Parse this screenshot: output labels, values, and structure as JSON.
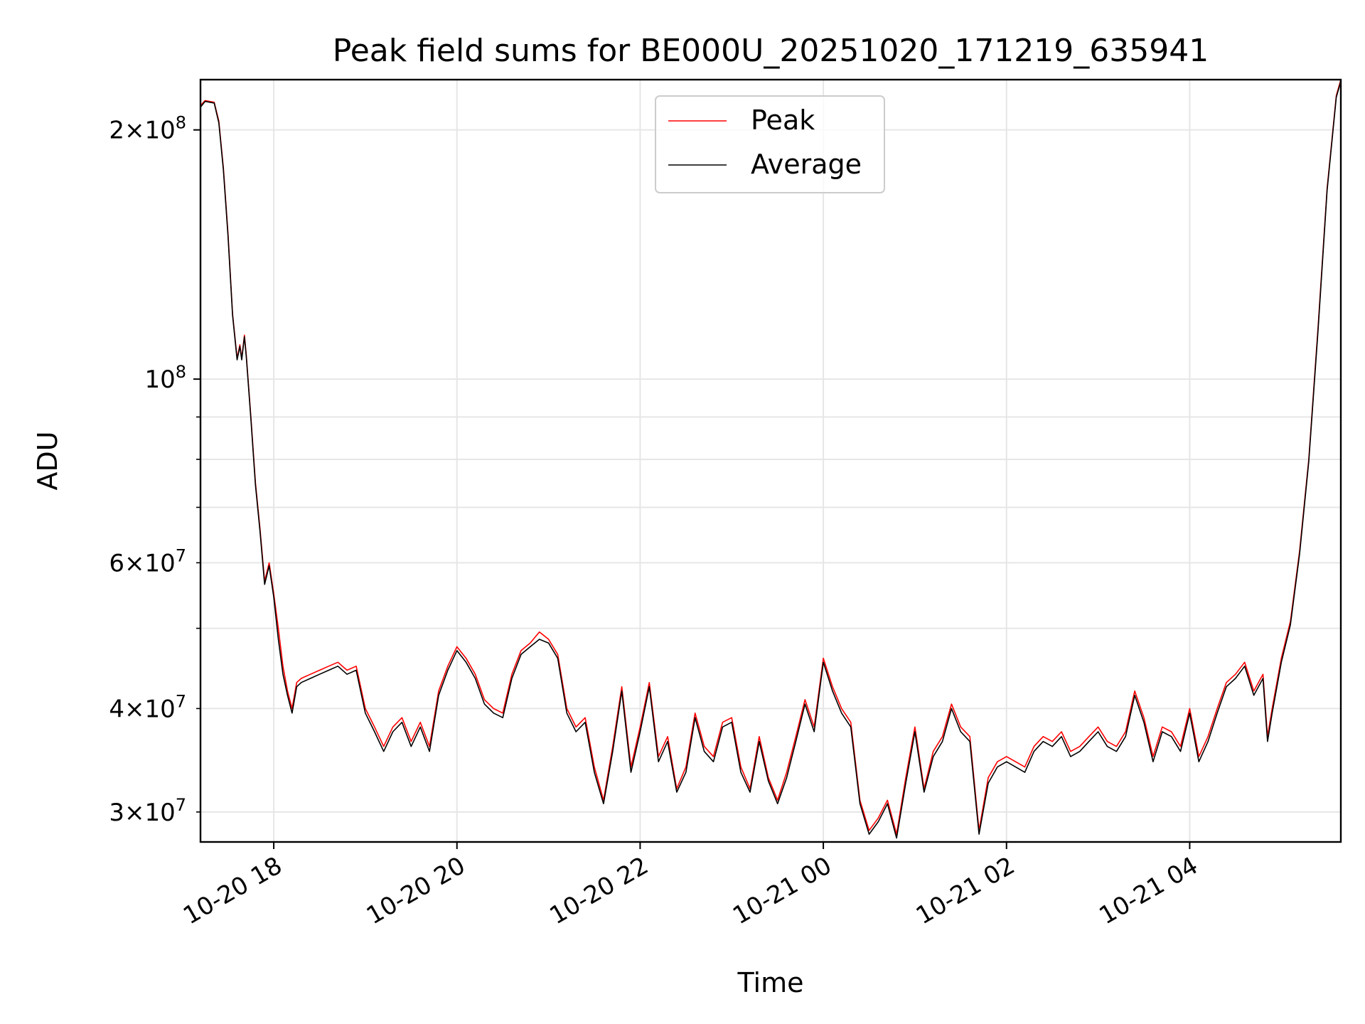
{
  "chart_data": {
    "type": "line",
    "title": "Peak field sums for BE000U_20251020_171219_635941",
    "xlabel": "Time",
    "ylabel": "ADU",
    "y_scale": "log",
    "ylim": [
      27600000,
      230000000
    ],
    "x_range_hours": [
      -0.8,
      11.65
    ],
    "x_ticks": [
      {
        "label": "10-20 18",
        "hour": 0
      },
      {
        "label": "10-20 20",
        "hour": 2
      },
      {
        "label": "10-20 22",
        "hour": 4
      },
      {
        "label": "10-21 00",
        "hour": 6
      },
      {
        "label": "10-21 02",
        "hour": 8
      },
      {
        "label": "10-21 04",
        "hour": 10
      }
    ],
    "y_ticks_major": [
      {
        "value": 100000000,
        "base": "10",
        "exp": "8",
        "mant": ""
      },
      {
        "value": 200000000,
        "base": "10",
        "exp": "8",
        "mant": "2"
      }
    ],
    "y_ticks_minor": [
      {
        "value": 30000000,
        "base": "10",
        "exp": "7",
        "mant": "3",
        "labeled": true
      },
      {
        "value": 40000000,
        "base": "10",
        "exp": "7",
        "mant": "4",
        "labeled": true
      },
      {
        "value": 50000000,
        "labeled": false
      },
      {
        "value": 60000000,
        "base": "10",
        "exp": "7",
        "mant": "6",
        "labeled": true
      },
      {
        "value": 70000000,
        "labeled": false
      },
      {
        "value": 80000000,
        "labeled": false
      },
      {
        "value": 90000000,
        "labeled": false
      }
    ],
    "times_symbol": "×",
    "grid": true,
    "legend_position": "top-center",
    "colors": {
      "peak": "#ff0000",
      "average": "#000000",
      "grid": "#e6e6e6"
    },
    "series": [
      {
        "name": "Peak",
        "points": [
          [
            -0.8,
            214000000
          ],
          [
            -0.75,
            217000000
          ],
          [
            -0.65,
            216000000
          ],
          [
            -0.6,
            205000000
          ],
          [
            -0.55,
            180000000
          ],
          [
            -0.5,
            150000000
          ],
          [
            -0.45,
            120000000
          ],
          [
            -0.4,
            106000000
          ],
          [
            -0.37,
            110000000
          ],
          [
            -0.35,
            106000000
          ],
          [
            -0.32,
            113000000
          ],
          [
            -0.3,
            107000000
          ],
          [
            -0.25,
            90000000
          ],
          [
            -0.2,
            75000000
          ],
          [
            -0.15,
            66000000
          ],
          [
            -0.1,
            57000000
          ],
          [
            -0.05,
            60000000
          ],
          [
            0,
            55000000
          ],
          [
            0.05,
            50000000
          ],
          [
            0.1,
            45000000
          ],
          [
            0.15,
            42000000
          ],
          [
            0.2,
            40000000
          ],
          [
            0.25,
            43000000
          ],
          [
            0.3,
            43500000
          ],
          [
            0.4,
            44000000
          ],
          [
            0.5,
            44500000
          ],
          [
            0.6,
            45000000
          ],
          [
            0.7,
            45500000
          ],
          [
            0.8,
            44500000
          ],
          [
            0.9,
            45000000
          ],
          [
            1.0,
            40000000
          ],
          [
            1.1,
            38000000
          ],
          [
            1.2,
            36000000
          ],
          [
            1.3,
            38000000
          ],
          [
            1.4,
            39000000
          ],
          [
            1.5,
            36500000
          ],
          [
            1.6,
            38500000
          ],
          [
            1.7,
            36000000
          ],
          [
            1.8,
            42000000
          ],
          [
            1.9,
            45000000
          ],
          [
            2.0,
            47500000
          ],
          [
            2.1,
            46000000
          ],
          [
            2.2,
            44000000
          ],
          [
            2.3,
            41000000
          ],
          [
            2.4,
            40000000
          ],
          [
            2.5,
            39500000
          ],
          [
            2.6,
            44000000
          ],
          [
            2.7,
            47000000
          ],
          [
            2.8,
            48000000
          ],
          [
            2.9,
            49500000
          ],
          [
            3.0,
            48500000
          ],
          [
            3.1,
            46500000
          ],
          [
            3.2,
            40000000
          ],
          [
            3.3,
            38000000
          ],
          [
            3.4,
            39000000
          ],
          [
            3.5,
            34000000
          ],
          [
            3.6,
            31000000
          ],
          [
            3.7,
            36000000
          ],
          [
            3.8,
            42500000
          ],
          [
            3.9,
            34000000
          ],
          [
            4.0,
            38000000
          ],
          [
            4.1,
            43000000
          ],
          [
            4.2,
            35000000
          ],
          [
            4.3,
            37000000
          ],
          [
            4.4,
            32000000
          ],
          [
            4.5,
            34000000
          ],
          [
            4.6,
            39500000
          ],
          [
            4.7,
            36000000
          ],
          [
            4.8,
            35000000
          ],
          [
            4.9,
            38500000
          ],
          [
            5.0,
            39000000
          ],
          [
            5.1,
            34000000
          ],
          [
            5.2,
            32000000
          ],
          [
            5.3,
            37000000
          ],
          [
            5.4,
            33000000
          ],
          [
            5.5,
            31000000
          ],
          [
            5.6,
            33500000
          ],
          [
            5.7,
            37000000
          ],
          [
            5.8,
            41000000
          ],
          [
            5.9,
            38000000
          ],
          [
            6.0,
            46000000
          ],
          [
            6.1,
            42500000
          ],
          [
            6.2,
            40000000
          ],
          [
            6.3,
            38500000
          ],
          [
            6.4,
            31000000
          ],
          [
            6.5,
            28500000
          ],
          [
            6.6,
            29500000
          ],
          [
            6.7,
            31000000
          ],
          [
            6.8,
            28200000
          ],
          [
            6.9,
            33000000
          ],
          [
            7.0,
            38000000
          ],
          [
            7.1,
            32000000
          ],
          [
            7.2,
            35500000
          ],
          [
            7.3,
            37000000
          ],
          [
            7.4,
            40500000
          ],
          [
            7.5,
            38000000
          ],
          [
            7.6,
            37000000
          ],
          [
            7.7,
            28500000
          ],
          [
            7.8,
            33000000
          ],
          [
            7.9,
            34500000
          ],
          [
            8.0,
            35000000
          ],
          [
            8.1,
            34500000
          ],
          [
            8.2,
            34000000
          ],
          [
            8.3,
            36000000
          ],
          [
            8.4,
            37000000
          ],
          [
            8.5,
            36500000
          ],
          [
            8.6,
            37500000
          ],
          [
            8.7,
            35500000
          ],
          [
            8.8,
            36000000
          ],
          [
            8.9,
            37000000
          ],
          [
            9.0,
            38000000
          ],
          [
            9.1,
            36500000
          ],
          [
            9.2,
            36000000
          ],
          [
            9.3,
            37500000
          ],
          [
            9.4,
            42000000
          ],
          [
            9.5,
            39000000
          ],
          [
            9.6,
            35000000
          ],
          [
            9.7,
            38000000
          ],
          [
            9.8,
            37500000
          ],
          [
            9.9,
            36000000
          ],
          [
            10.0,
            40000000
          ],
          [
            10.1,
            35000000
          ],
          [
            10.2,
            37000000
          ],
          [
            10.3,
            40000000
          ],
          [
            10.4,
            43000000
          ],
          [
            10.5,
            44000000
          ],
          [
            10.6,
            45500000
          ],
          [
            10.7,
            42000000
          ],
          [
            10.8,
            44000000
          ],
          [
            10.85,
            37000000
          ],
          [
            10.9,
            40000000
          ],
          [
            11.0,
            46000000
          ],
          [
            11.1,
            51000000
          ],
          [
            11.2,
            62000000
          ],
          [
            11.3,
            80000000
          ],
          [
            11.4,
            115000000
          ],
          [
            11.5,
            170000000
          ],
          [
            11.6,
            220000000
          ],
          [
            11.65,
            230000000
          ]
        ]
      },
      {
        "name": "Average",
        "points": [
          [
            -0.8,
            213000000
          ],
          [
            -0.75,
            216500000
          ],
          [
            -0.65,
            215500000
          ],
          [
            -0.6,
            204000000
          ],
          [
            -0.55,
            179000000
          ],
          [
            -0.5,
            149000000
          ],
          [
            -0.45,
            119500000
          ],
          [
            -0.4,
            105500000
          ],
          [
            -0.37,
            109500000
          ],
          [
            -0.35,
            105500000
          ],
          [
            -0.32,
            112500000
          ],
          [
            -0.3,
            106500000
          ],
          [
            -0.25,
            89500000
          ],
          [
            -0.2,
            74500000
          ],
          [
            -0.15,
            65500000
          ],
          [
            -0.1,
            56500000
          ],
          [
            -0.05,
            59500000
          ],
          [
            0,
            54500000
          ],
          [
            0.05,
            48500000
          ],
          [
            0.1,
            44000000
          ],
          [
            0.15,
            41500000
          ],
          [
            0.2,
            39500000
          ],
          [
            0.25,
            42500000
          ],
          [
            0.3,
            43000000
          ],
          [
            0.4,
            43500000
          ],
          [
            0.5,
            44000000
          ],
          [
            0.6,
            44500000
          ],
          [
            0.7,
            45000000
          ],
          [
            0.8,
            44000000
          ],
          [
            0.9,
            44500000
          ],
          [
            1.0,
            39500000
          ],
          [
            1.1,
            37500000
          ],
          [
            1.2,
            35500000
          ],
          [
            1.3,
            37500000
          ],
          [
            1.4,
            38500000
          ],
          [
            1.5,
            36000000
          ],
          [
            1.6,
            38000000
          ],
          [
            1.7,
            35500000
          ],
          [
            1.8,
            41500000
          ],
          [
            1.9,
            44500000
          ],
          [
            2.0,
            47000000
          ],
          [
            2.1,
            45500000
          ],
          [
            2.2,
            43500000
          ],
          [
            2.3,
            40500000
          ],
          [
            2.4,
            39500000
          ],
          [
            2.5,
            39000000
          ],
          [
            2.6,
            43500000
          ],
          [
            2.7,
            46500000
          ],
          [
            2.8,
            47500000
          ],
          [
            2.9,
            48500000
          ],
          [
            3.0,
            48000000
          ],
          [
            3.1,
            46000000
          ],
          [
            3.2,
            39500000
          ],
          [
            3.3,
            37500000
          ],
          [
            3.4,
            38500000
          ],
          [
            3.5,
            33500000
          ],
          [
            3.6,
            30700000
          ],
          [
            3.7,
            35500000
          ],
          [
            3.8,
            42000000
          ],
          [
            3.9,
            33500000
          ],
          [
            4.0,
            37500000
          ],
          [
            4.1,
            42500000
          ],
          [
            4.2,
            34500000
          ],
          [
            4.3,
            36500000
          ],
          [
            4.4,
            31700000
          ],
          [
            4.5,
            33500000
          ],
          [
            4.6,
            39000000
          ],
          [
            4.7,
            35500000
          ],
          [
            4.8,
            34500000
          ],
          [
            4.9,
            38000000
          ],
          [
            5.0,
            38500000
          ],
          [
            5.1,
            33500000
          ],
          [
            5.2,
            31700000
          ],
          [
            5.3,
            36500000
          ],
          [
            5.4,
            32700000
          ],
          [
            5.5,
            30700000
          ],
          [
            5.6,
            33000000
          ],
          [
            5.7,
            36500000
          ],
          [
            5.8,
            40500000
          ],
          [
            5.9,
            37500000
          ],
          [
            6.0,
            45500000
          ],
          [
            6.1,
            42000000
          ],
          [
            6.2,
            39500000
          ],
          [
            6.3,
            38000000
          ],
          [
            6.4,
            30700000
          ],
          [
            6.5,
            28200000
          ],
          [
            6.6,
            29200000
          ],
          [
            6.7,
            30700000
          ],
          [
            6.8,
            27900000
          ],
          [
            6.9,
            32500000
          ],
          [
            7.0,
            37500000
          ],
          [
            7.1,
            31700000
          ],
          [
            7.2,
            35000000
          ],
          [
            7.3,
            36500000
          ],
          [
            7.4,
            40000000
          ],
          [
            7.5,
            37500000
          ],
          [
            7.6,
            36500000
          ],
          [
            7.7,
            28200000
          ],
          [
            7.8,
            32500000
          ],
          [
            7.9,
            34000000
          ],
          [
            8.0,
            34500000
          ],
          [
            8.1,
            34000000
          ],
          [
            8.2,
            33500000
          ],
          [
            8.3,
            35500000
          ],
          [
            8.4,
            36500000
          ],
          [
            8.5,
            36000000
          ],
          [
            8.6,
            37000000
          ],
          [
            8.7,
            35000000
          ],
          [
            8.8,
            35500000
          ],
          [
            8.9,
            36500000
          ],
          [
            9.0,
            37500000
          ],
          [
            9.1,
            36000000
          ],
          [
            9.2,
            35500000
          ],
          [
            9.3,
            37000000
          ],
          [
            9.4,
            41500000
          ],
          [
            9.5,
            38500000
          ],
          [
            9.6,
            34500000
          ],
          [
            9.7,
            37500000
          ],
          [
            9.8,
            37000000
          ],
          [
            9.9,
            35500000
          ],
          [
            10.0,
            39500000
          ],
          [
            10.1,
            34500000
          ],
          [
            10.2,
            36500000
          ],
          [
            10.3,
            39500000
          ],
          [
            10.4,
            42500000
          ],
          [
            10.5,
            43500000
          ],
          [
            10.6,
            45000000
          ],
          [
            10.7,
            41500000
          ],
          [
            10.8,
            43500000
          ],
          [
            10.85,
            36500000
          ],
          [
            10.9,
            39500000
          ],
          [
            11.0,
            45500000
          ],
          [
            11.1,
            50500000
          ],
          [
            11.2,
            61500000
          ],
          [
            11.3,
            79500000
          ],
          [
            11.4,
            114000000
          ],
          [
            11.5,
            169000000
          ],
          [
            11.6,
            219000000
          ],
          [
            11.65,
            229000000
          ]
        ]
      }
    ]
  }
}
